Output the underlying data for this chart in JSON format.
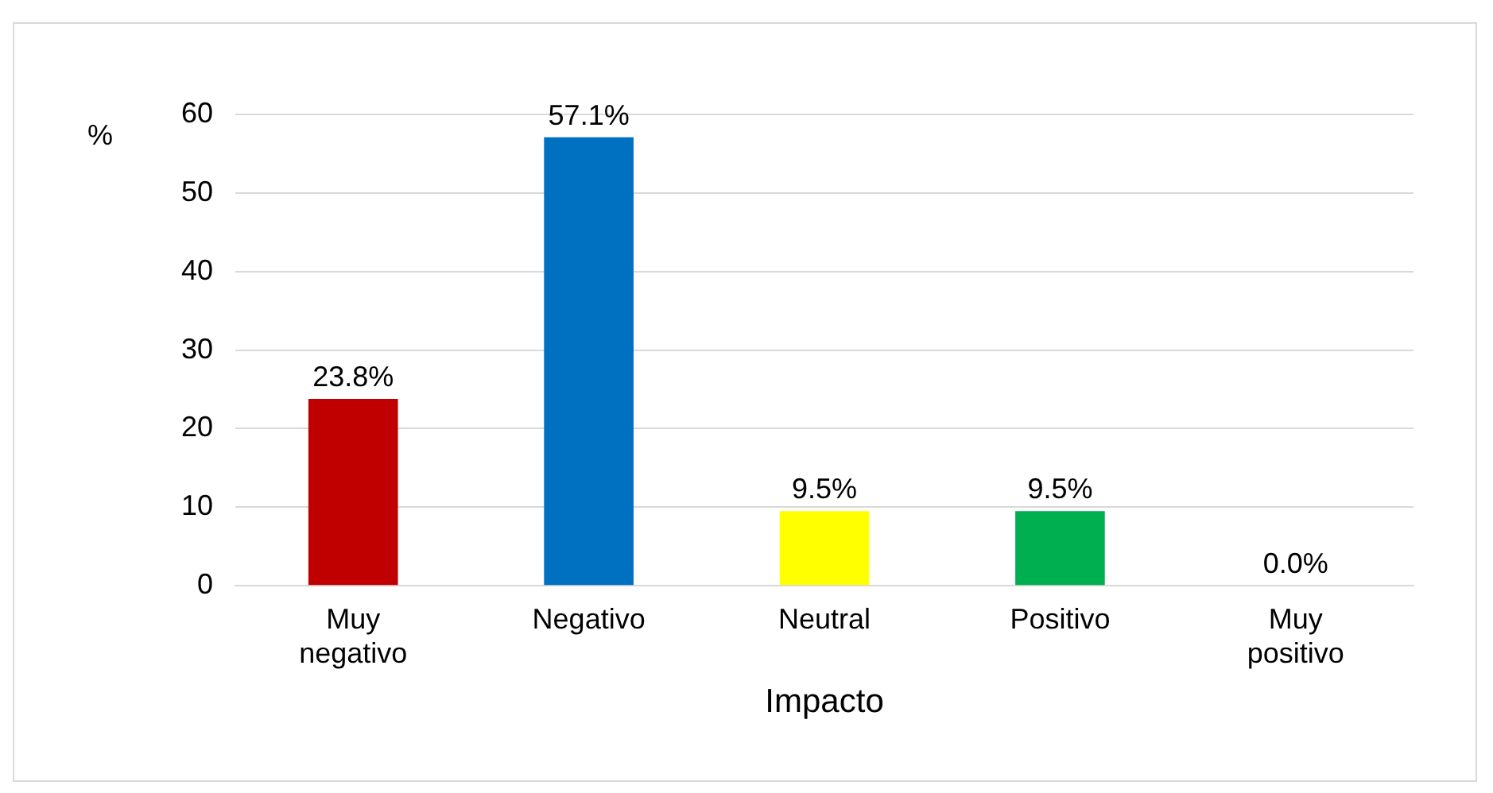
{
  "chart_data": {
    "type": "bar",
    "xlabel": "Impacto",
    "ylabel": "%",
    "categories": [
      "Muy negativo",
      "Negativo",
      "Neutral",
      "Positivo",
      "Muy positivo"
    ],
    "values": [
      23.8,
      57.1,
      9.5,
      9.5,
      0.0
    ],
    "colors": [
      "#c00000",
      "#0070c0",
      "#ffff00",
      "#00b050",
      "#7030a0"
    ],
    "value_labels": [
      "23.8%",
      "57.1%",
      "9.5%",
      "9.5%",
      "0.0%"
    ],
    "ylim": [
      0,
      60
    ],
    "yticks": [
      0,
      10,
      20,
      30,
      40,
      50,
      60
    ],
    "grid": "y",
    "legend": false
  }
}
